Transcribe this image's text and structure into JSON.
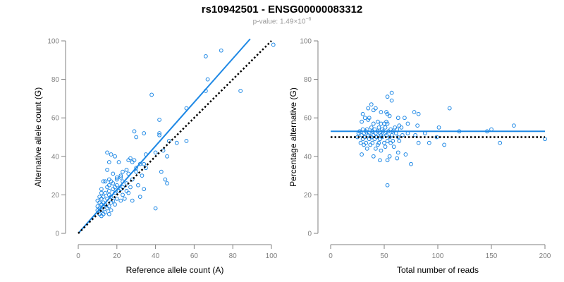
{
  "title": "rs10942501 - ENSG00000083312",
  "subtitle": {
    "label": "p-value:",
    "mantissa": "1.49",
    "times": "×",
    "base": "10",
    "exponent": "−6"
  },
  "colors": {
    "point": "#1e88e5",
    "fit_line": "#1e88e5",
    "reference_line": "#000000",
    "axis": "#808080"
  },
  "chart_data": [
    {
      "type": "scatter",
      "xlabel": "Reference allele count (A)",
      "ylabel": "Alternative allele count (G)",
      "xlim": [
        0,
        100
      ],
      "ylim": [
        0,
        100
      ],
      "xticks": [
        "0",
        "20",
        "40",
        "60",
        "80",
        "100"
      ],
      "yticks": [
        "0",
        "20",
        "40",
        "60",
        "80",
        "100"
      ],
      "fit_line": {
        "x": [
          0,
          89
        ],
        "y": [
          0,
          101
        ],
        "style": "solid"
      },
      "reference_line": {
        "x": [
          0,
          100
        ],
        "y": [
          0,
          100
        ],
        "style": "dotted"
      },
      "grid": false,
      "points": [
        [
          101,
          98
        ],
        [
          66,
          92
        ],
        [
          74,
          95
        ],
        [
          38,
          72
        ],
        [
          67,
          80
        ],
        [
          84,
          74
        ],
        [
          66,
          74
        ],
        [
          56,
          65
        ],
        [
          42,
          59
        ],
        [
          29,
          53
        ],
        [
          42,
          52
        ],
        [
          34,
          52
        ],
        [
          42,
          51
        ],
        [
          30,
          50
        ],
        [
          47,
          48
        ],
        [
          56,
          48
        ],
        [
          51,
          47
        ],
        [
          44,
          43
        ],
        [
          40,
          42
        ],
        [
          35,
          41
        ],
        [
          46,
          40
        ],
        [
          15,
          42
        ],
        [
          17,
          41
        ],
        [
          19,
          40
        ],
        [
          27,
          39
        ],
        [
          29,
          38
        ],
        [
          26,
          38
        ],
        [
          28,
          37
        ],
        [
          34,
          36
        ],
        [
          35,
          34
        ],
        [
          16,
          37
        ],
        [
          21,
          37
        ],
        [
          32,
          36
        ],
        [
          30,
          34
        ],
        [
          25,
          33
        ],
        [
          43,
          32
        ],
        [
          15,
          33
        ],
        [
          23,
          32
        ],
        [
          30,
          32
        ],
        [
          18,
          31
        ],
        [
          26,
          31
        ],
        [
          22,
          30
        ],
        [
          33,
          30
        ],
        [
          20,
          29
        ],
        [
          22,
          29
        ],
        [
          28,
          28
        ],
        [
          45,
          28
        ],
        [
          16,
          28
        ],
        [
          20,
          28
        ],
        [
          13,
          27
        ],
        [
          17,
          27
        ],
        [
          23,
          27
        ],
        [
          14,
          27
        ],
        [
          46,
          26
        ],
        [
          18,
          26
        ],
        [
          25,
          26
        ],
        [
          31,
          25
        ],
        [
          16,
          25
        ],
        [
          20,
          25
        ],
        [
          23,
          24
        ],
        [
          15,
          24
        ],
        [
          19,
          24
        ],
        [
          27,
          24
        ],
        [
          34,
          23
        ],
        [
          12,
          23
        ],
        [
          18,
          23
        ],
        [
          22,
          23
        ],
        [
          25,
          22
        ],
        [
          16,
          22
        ],
        [
          21,
          22
        ],
        [
          26,
          21
        ],
        [
          12,
          21
        ],
        [
          14,
          21
        ],
        [
          19,
          21
        ],
        [
          23,
          20
        ],
        [
          16,
          20
        ],
        [
          32,
          19
        ],
        [
          11,
          19
        ],
        [
          13,
          19
        ],
        [
          17,
          19
        ],
        [
          20,
          18
        ],
        [
          24,
          18
        ],
        [
          12,
          18
        ],
        [
          15,
          18
        ],
        [
          18,
          17
        ],
        [
          22,
          17
        ],
        [
          28,
          17
        ],
        [
          10,
          17
        ],
        [
          13,
          16
        ],
        [
          17,
          16
        ],
        [
          11,
          16
        ],
        [
          14,
          15
        ],
        [
          19,
          15
        ],
        [
          12,
          15
        ],
        [
          16,
          14
        ],
        [
          10,
          14
        ],
        [
          13,
          14
        ],
        [
          40,
          13
        ],
        [
          11,
          13
        ],
        [
          15,
          13
        ],
        [
          12,
          12
        ],
        [
          17,
          12
        ],
        [
          10,
          12
        ],
        [
          14,
          11
        ],
        [
          13,
          10
        ],
        [
          11,
          10
        ],
        [
          16,
          10
        ],
        [
          12,
          9
        ]
      ]
    },
    {
      "type": "scatter",
      "xlabel": "Total number of reads",
      "ylabel": "Percentage alternative (G)",
      "xlim": [
        0,
        200
      ],
      "ylim": [
        0,
        100
      ],
      "xticks": [
        "0",
        "50",
        "100",
        "150",
        "200"
      ],
      "yticks": [
        "0",
        "20",
        "40",
        "60",
        "80",
        "100"
      ],
      "fit_line": {
        "x": [
          0,
          200
        ],
        "y": [
          53,
          53
        ],
        "style": "solid"
      },
      "reference_line": {
        "x": [
          0,
          200
        ],
        "y": [
          50,
          50
        ],
        "style": "dotted"
      },
      "grid": false,
      "points": [
        [
          57,
          73
        ],
        [
          53,
          71
        ],
        [
          57,
          69
        ],
        [
          38,
          67
        ],
        [
          42,
          65
        ],
        [
          35,
          65
        ],
        [
          111,
          65
        ],
        [
          40,
          64
        ],
        [
          47,
          63
        ],
        [
          52,
          63
        ],
        [
          53,
          62
        ],
        [
          30,
          62
        ],
        [
          55,
          61
        ],
        [
          32,
          60
        ],
        [
          36,
          60
        ],
        [
          63,
          60
        ],
        [
          69,
          60
        ],
        [
          35,
          59
        ],
        [
          44,
          58
        ],
        [
          52,
          58
        ],
        [
          78,
          63
        ],
        [
          82,
          62
        ],
        [
          29,
          58
        ],
        [
          40,
          57
        ],
        [
          47,
          57
        ],
        [
          50,
          57
        ],
        [
          53,
          57
        ],
        [
          72,
          57
        ],
        [
          101,
          55
        ],
        [
          64,
          56
        ],
        [
          81,
          56
        ],
        [
          171,
          56
        ],
        [
          38,
          55
        ],
        [
          45,
          55
        ],
        [
          51,
          55
        ],
        [
          60,
          55
        ],
        [
          66,
          55
        ],
        [
          30,
          54
        ],
        [
          34,
          54
        ],
        [
          41,
          54
        ],
        [
          48,
          54
        ],
        [
          56,
          54
        ],
        [
          62,
          54
        ],
        [
          150,
          54
        ],
        [
          27,
          53
        ],
        [
          33,
          53
        ],
        [
          39,
          53
        ],
        [
          44,
          53
        ],
        [
          49,
          53
        ],
        [
          54,
          53
        ],
        [
          58,
          53
        ],
        [
          120,
          53
        ],
        [
          146,
          53
        ],
        [
          26,
          52
        ],
        [
          31,
          52
        ],
        [
          36,
          52
        ],
        [
          42,
          52
        ],
        [
          46,
          52
        ],
        [
          51,
          52
        ],
        [
          61,
          52
        ],
        [
          72,
          52
        ],
        [
          88,
          52
        ],
        [
          29,
          51
        ],
        [
          35,
          51
        ],
        [
          40,
          51
        ],
        [
          47,
          51
        ],
        [
          52,
          51
        ],
        [
          57,
          51
        ],
        [
          67,
          51
        ],
        [
          79,
          51
        ],
        [
          25,
          50
        ],
        [
          32,
          50
        ],
        [
          38,
          50
        ],
        [
          43,
          50
        ],
        [
          48,
          50
        ],
        [
          55,
          50
        ],
        [
          63,
          50
        ],
        [
          99,
          50
        ],
        [
          200,
          49
        ],
        [
          30,
          49
        ],
        [
          36,
          49
        ],
        [
          41,
          49
        ],
        [
          46,
          49
        ],
        [
          53,
          48
        ],
        [
          58,
          48
        ],
        [
          64,
          48
        ],
        [
          28,
          47
        ],
        [
          33,
          47
        ],
        [
          39,
          47
        ],
        [
          45,
          47
        ],
        [
          50,
          47
        ],
        [
          56,
          47
        ],
        [
          82,
          47
        ],
        [
          106,
          46
        ],
        [
          158,
          47
        ],
        [
          92,
          47
        ],
        [
          31,
          46
        ],
        [
          37,
          46
        ],
        [
          44,
          46
        ],
        [
          51,
          45
        ],
        [
          59,
          45
        ],
        [
          34,
          44
        ],
        [
          42,
          44
        ],
        [
          47,
          43
        ],
        [
          63,
          42
        ],
        [
          70,
          41
        ],
        [
          29,
          41
        ],
        [
          40,
          40
        ],
        [
          55,
          40
        ],
        [
          62,
          39
        ],
        [
          53,
          38
        ],
        [
          46,
          38
        ],
        [
          75,
          36
        ],
        [
          53,
          25
        ]
      ]
    }
  ]
}
